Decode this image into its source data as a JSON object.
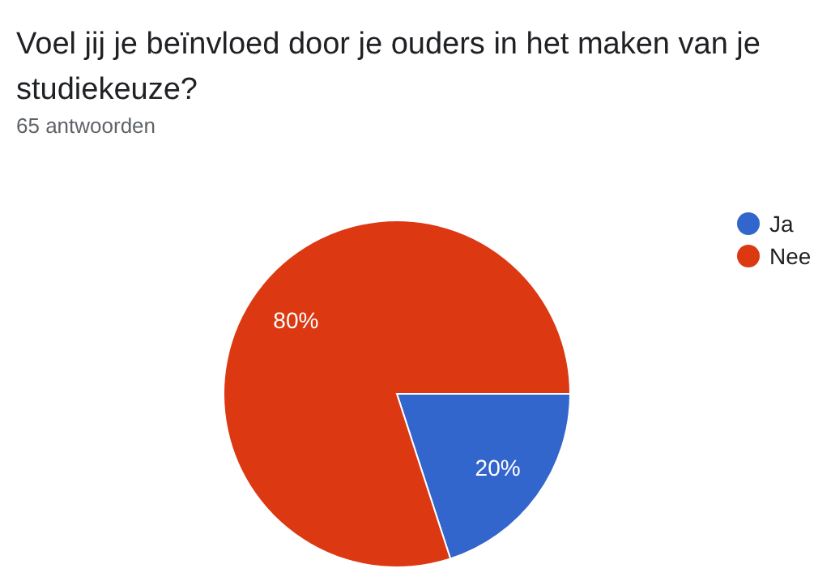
{
  "chart_data": {
    "type": "pie",
    "title": "Voel jij je beïnvloed door je ouders in het maken van je studiekeuze?",
    "subtitle": "65 antwoorden",
    "categories": [
      "Ja",
      "Nee"
    ],
    "values": [
      20,
      80
    ],
    "colors": [
      "#3366cc",
      "#dc3912"
    ],
    "value_labels": [
      "20%",
      "80%"
    ],
    "legend": "right"
  }
}
